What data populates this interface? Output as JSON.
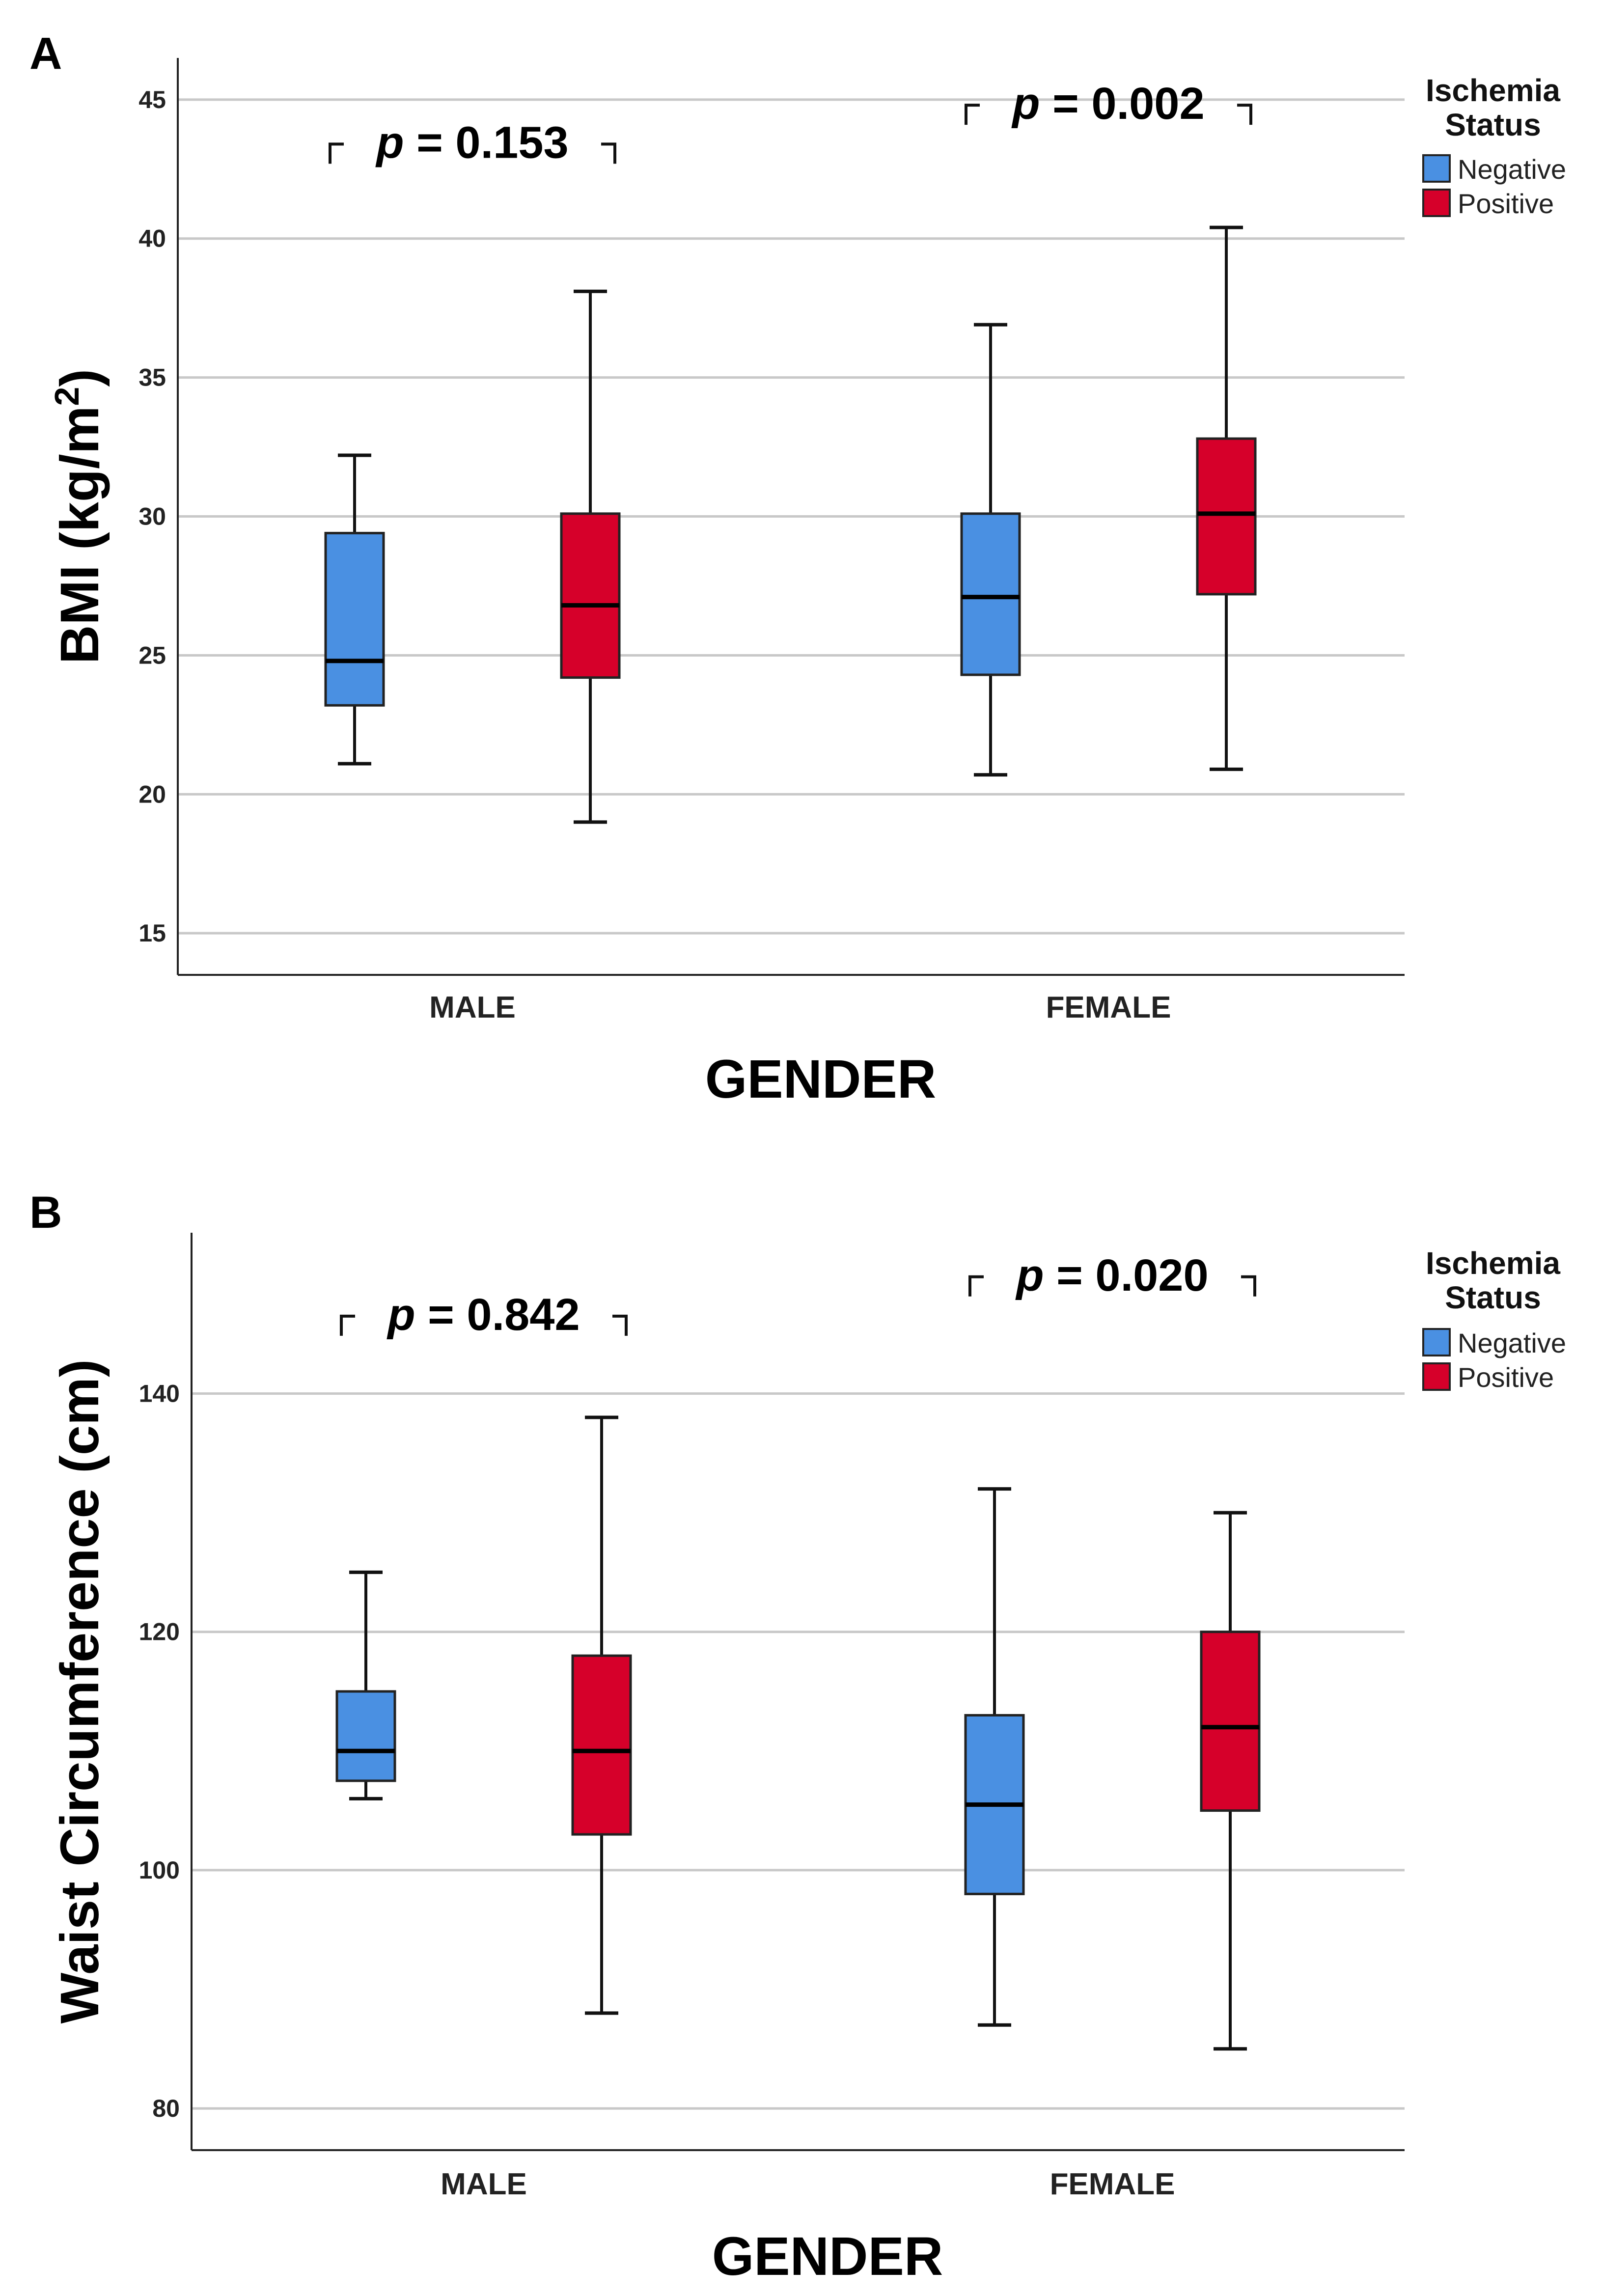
{
  "colors": {
    "negative": "#4a90e2",
    "positive": "#d6002a",
    "grid": "#c8c8c8",
    "axis": "#222222",
    "whisker": "#111111"
  },
  "chart_data": [
    {
      "type": "boxplot",
      "panel_label": "A",
      "title": "",
      "xlabel": "GENDER",
      "ylabel": "BMI (kg/m",
      "ylabel_sup": "2",
      "ylabel_close": ")",
      "ylim": [
        13.5,
        46.5
      ],
      "yticks": [
        15,
        20,
        25,
        30,
        35,
        40,
        45
      ],
      "categories": [
        "MALE",
        "FEMALE"
      ],
      "legend": {
        "title_line1": "Ischemia",
        "title_line2": "Status",
        "items": [
          "Negative",
          "Positive"
        ]
      },
      "series": [
        {
          "name": "Negative",
          "boxes": [
            {
              "category": "MALE",
              "min": 21.1,
              "q1": 23.2,
              "median": 24.8,
              "q3": 29.4,
              "max": 32.2
            },
            {
              "category": "FEMALE",
              "min": 20.7,
              "q1": 24.3,
              "median": 27.1,
              "q3": 30.1,
              "max": 36.9
            }
          ]
        },
        {
          "name": "Positive",
          "boxes": [
            {
              "category": "MALE",
              "min": 19.0,
              "q1": 24.2,
              "median": 26.8,
              "q3": 30.1,
              "max": 38.1
            },
            {
              "category": "FEMALE",
              "min": 20.9,
              "q1": 27.2,
              "median": 30.1,
              "q3": 32.8,
              "max": 40.4
            }
          ]
        }
      ],
      "annotations": [
        {
          "category": "MALE",
          "p_symbol": "p",
          "p_text": " = 0.153",
          "value": 43.4
        },
        {
          "category": "FEMALE",
          "p_symbol": "p",
          "p_text": " = 0.002",
          "value": 44.8
        }
      ]
    },
    {
      "type": "boxplot",
      "panel_label": "B",
      "title": "",
      "xlabel": "GENDER",
      "ylabel": "Waist Circumference (cm)",
      "ylabel_sup": "",
      "ylabel_close": "",
      "ylim": [
        76.5,
        153.5
      ],
      "yticks": [
        80,
        100,
        120,
        140
      ],
      "categories": [
        "MALE",
        "FEMALE"
      ],
      "legend": {
        "title_line1": "Ischemia",
        "title_line2": "Status",
        "items": [
          "Negative",
          "Positive"
        ]
      },
      "series": [
        {
          "name": "Negative",
          "boxes": [
            {
              "category": "MALE",
              "min": 106,
              "q1": 107.5,
              "median": 110,
              "q3": 115,
              "max": 125
            },
            {
              "category": "FEMALE",
              "min": 87,
              "q1": 98,
              "median": 105.5,
              "q3": 113,
              "max": 132
            }
          ]
        },
        {
          "name": "Positive",
          "boxes": [
            {
              "category": "MALE",
              "min": 88,
              "q1": 103,
              "median": 110,
              "q3": 118,
              "max": 138
            },
            {
              "category": "FEMALE",
              "min": 85,
              "q1": 105,
              "median": 112,
              "q3": 120,
              "max": 130
            }
          ]
        }
      ],
      "annotations": [
        {
          "category": "MALE",
          "p_symbol": "p",
          "p_text": " = 0.842",
          "value": 146.5
        },
        {
          "category": "FEMALE",
          "p_symbol": "p",
          "p_text": " = 0.020",
          "value": 149.8
        }
      ]
    }
  ]
}
